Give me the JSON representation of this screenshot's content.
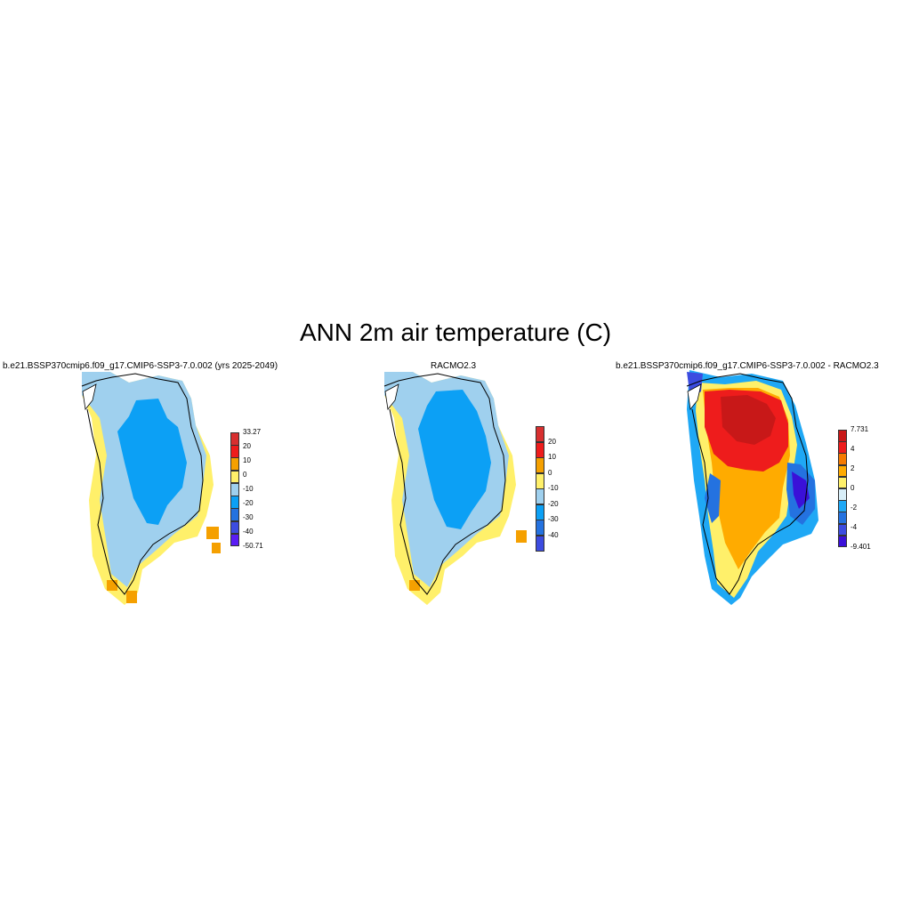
{
  "title": "ANN 2m air temperature (C)",
  "panels": [
    {
      "title": "b.e21.BSSP370cmip6.f09_g17.CMIP6-SSP3-7.0.002 (yrs 2025-2049)",
      "colorbar": {
        "labels": [
          "33.27",
          "20",
          "10",
          "0",
          "-10",
          "-20",
          "-30",
          "-40",
          "-50.71"
        ],
        "colors": [
          "#d83030",
          "#ee1c1c",
          "#f5a000",
          "#fff06a",
          "#9fd0ee",
          "#0ca0f5",
          "#2472e0",
          "#3c4ce0",
          "#5a1cf5"
        ]
      }
    },
    {
      "title": "RACMO2.3",
      "colorbar": {
        "labels": [
          "20",
          "10",
          "0",
          "-10",
          "-20",
          "-30",
          "-40"
        ],
        "colors": [
          "#d83030",
          "#ee1c1c",
          "#f5a000",
          "#fff06a",
          "#9fd0ee",
          "#0ca0f5",
          "#2472e0",
          "#3c4ce0"
        ]
      }
    },
    {
      "title": "b.e21.BSSP370cmip6.f09_g17.CMIP6-SSP3-7.0.002 - RACMO2.3",
      "colorbar": {
        "labels": [
          "7.731",
          "4",
          "2",
          "0",
          "-2",
          "-4",
          "-9.401"
        ],
        "colors": [
          "#c81818",
          "#ee1c1c",
          "#f57a00",
          "#ffab00",
          "#fff06a",
          "#d8eef8",
          "#1fa8f5",
          "#2472e0",
          "#3c4ce0",
          "#3a10d8"
        ]
      }
    }
  ]
}
